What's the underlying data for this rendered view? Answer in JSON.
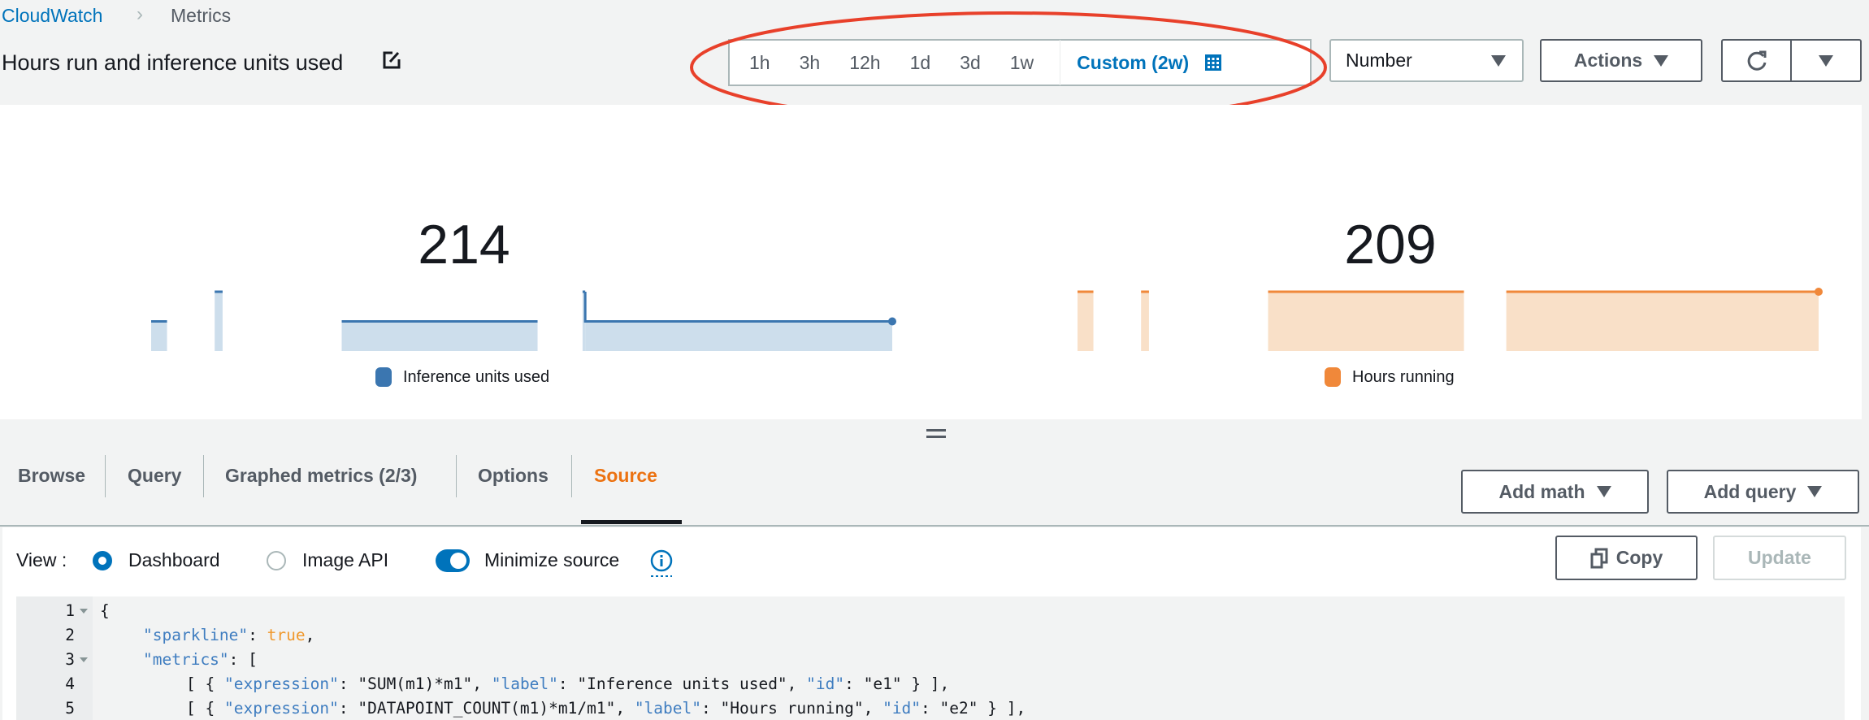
{
  "breadcrumb": {
    "root": "CloudWatch",
    "current": "Metrics"
  },
  "header": {
    "title": "Hours run and inference units used"
  },
  "time_range": {
    "options": [
      "1h",
      "3h",
      "12h",
      "1d",
      "3d",
      "1w"
    ],
    "custom": "Custom (2w)",
    "selected": "Custom (2w)"
  },
  "view_select": {
    "value": "Number"
  },
  "toolbar": {
    "actions": "Actions"
  },
  "colors": {
    "accent": "#0073bb",
    "series1": "#3b76b0",
    "series2": "#f0883a",
    "active_tab": "#ec7211",
    "annotation": "#e8402a"
  },
  "chart_data": [
    {
      "type": "area",
      "title": "214",
      "legend": "Inference units used",
      "color": "#3b76b0",
      "x_unit": "days into 2w window",
      "xlim": [
        0,
        14
      ],
      "segments": [
        {
          "x": [
            0,
            0.3
          ],
          "value": 1
        },
        {
          "x": [
            1.2,
            1.35
          ],
          "value": 2
        },
        {
          "x": [
            3.6,
            7.3
          ],
          "value": 1
        },
        {
          "x": [
            8.15,
            8.2
          ],
          "value": 2
        },
        {
          "x": [
            8.2,
            14
          ],
          "value": 1
        }
      ]
    },
    {
      "type": "area",
      "title": "209",
      "legend": "Hours running",
      "color": "#f0883a",
      "x_unit": "days into 2w window",
      "xlim": [
        0,
        14
      ],
      "segments": [
        {
          "x": [
            0,
            0.3
          ],
          "value": 1
        },
        {
          "x": [
            1.2,
            1.35
          ],
          "value": 1
        },
        {
          "x": [
            3.6,
            7.3
          ],
          "value": 1
        },
        {
          "x": [
            8.1,
            14
          ],
          "value": 1
        }
      ]
    }
  ],
  "tabs": [
    {
      "label": "Browse"
    },
    {
      "label": "Query"
    },
    {
      "label": "Graphed metrics (2/3)"
    },
    {
      "label": "Options"
    },
    {
      "label": "Source",
      "active": true
    }
  ],
  "tab_actions": {
    "add_math": "Add math",
    "add_query": "Add query"
  },
  "source": {
    "view_label": "View :",
    "view_options": [
      {
        "label": "Dashboard",
        "selected": true
      },
      {
        "label": "Image API",
        "selected": false
      }
    ],
    "minimize_label": "Minimize source",
    "minimize_on": true,
    "copy": "Copy",
    "update": "Update",
    "lines": [
      {
        "n": "1",
        "fold": true,
        "indent": 0,
        "tokens": [
          {
            "c": "p",
            "t": "{"
          }
        ]
      },
      {
        "n": "2",
        "fold": false,
        "indent": 1,
        "tokens": [
          {
            "c": "k",
            "t": "\"sparkline\""
          },
          {
            "c": "p",
            "t": ": "
          },
          {
            "c": "b",
            "t": "true"
          },
          {
            "c": "p",
            "t": ","
          }
        ]
      },
      {
        "n": "3",
        "fold": true,
        "indent": 1,
        "tokens": [
          {
            "c": "k",
            "t": "\"metrics\""
          },
          {
            "c": "p",
            "t": ": ["
          }
        ]
      },
      {
        "n": "4",
        "fold": false,
        "indent": 2,
        "tokens": [
          {
            "c": "p",
            "t": "[ { "
          },
          {
            "c": "k",
            "t": "\"expression\""
          },
          {
            "c": "p",
            "t": ": "
          },
          {
            "c": "s",
            "t": "\"SUM(m1)*m1\""
          },
          {
            "c": "p",
            "t": ", "
          },
          {
            "c": "k",
            "t": "\"label\""
          },
          {
            "c": "p",
            "t": ": "
          },
          {
            "c": "s",
            "t": "\"Inference units used\""
          },
          {
            "c": "p",
            "t": ", "
          },
          {
            "c": "k",
            "t": "\"id\""
          },
          {
            "c": "p",
            "t": ": "
          },
          {
            "c": "s",
            "t": "\"e1\""
          },
          {
            "c": "p",
            "t": " } ],"
          }
        ]
      },
      {
        "n": "5",
        "fold": false,
        "indent": 2,
        "tokens": [
          {
            "c": "p",
            "t": "[ { "
          },
          {
            "c": "k",
            "t": "\"expression\""
          },
          {
            "c": "p",
            "t": ": "
          },
          {
            "c": "s",
            "t": "\"DATAPOINT_COUNT(m1)*m1/m1\""
          },
          {
            "c": "p",
            "t": ", "
          },
          {
            "c": "k",
            "t": "\"label\""
          },
          {
            "c": "p",
            "t": ": "
          },
          {
            "c": "s",
            "t": "\"Hours running\""
          },
          {
            "c": "p",
            "t": ", "
          },
          {
            "c": "k",
            "t": "\"id\""
          },
          {
            "c": "p",
            "t": ": "
          },
          {
            "c": "s",
            "t": "\"e2\""
          },
          {
            "c": "p",
            "t": " } ],"
          }
        ]
      }
    ]
  }
}
